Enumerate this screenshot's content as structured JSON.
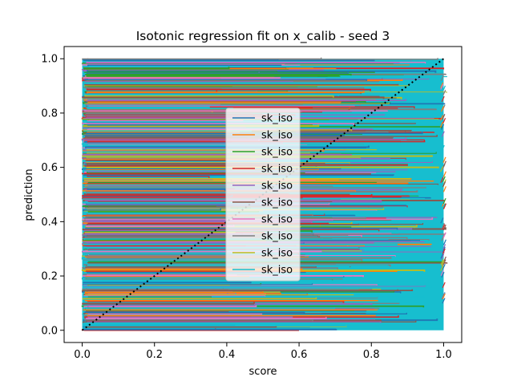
{
  "chart_data": {
    "type": "line",
    "title": "Isotonic regression fit on x_calib - seed 3",
    "xlabel": "score",
    "ylabel": "prediction",
    "xlim": [
      -0.05,
      1.05
    ],
    "ylim": [
      -0.045,
      1.045
    ],
    "xticks": [
      "0.0",
      "0.2",
      "0.4",
      "0.6",
      "0.8",
      "1.0"
    ],
    "yticks": [
      "0.0",
      "0.2",
      "0.4",
      "0.6",
      "0.8",
      "1.0"
    ],
    "grid": false,
    "legend_position": "center",
    "series": [
      {
        "name": "sk_iso",
        "color": "#1f77b4"
      },
      {
        "name": "sk_iso",
        "color": "#ff7f0e"
      },
      {
        "name": "sk_iso",
        "color": "#2ca02c"
      },
      {
        "name": "sk_iso",
        "color": "#d62728"
      },
      {
        "name": "sk_iso",
        "color": "#9467bd"
      },
      {
        "name": "sk_iso",
        "color": "#8c564b"
      },
      {
        "name": "sk_iso",
        "color": "#e377c2"
      },
      {
        "name": "sk_iso",
        "color": "#7f7f7f"
      },
      {
        "name": "sk_iso",
        "color": "#bcbd22"
      },
      {
        "name": "sk_iso",
        "color": "#17becf"
      }
    ],
    "reference_line": {
      "x": [
        0,
        1
      ],
      "y": [
        0,
        1
      ],
      "style": "dotted",
      "color": "#000000"
    }
  }
}
